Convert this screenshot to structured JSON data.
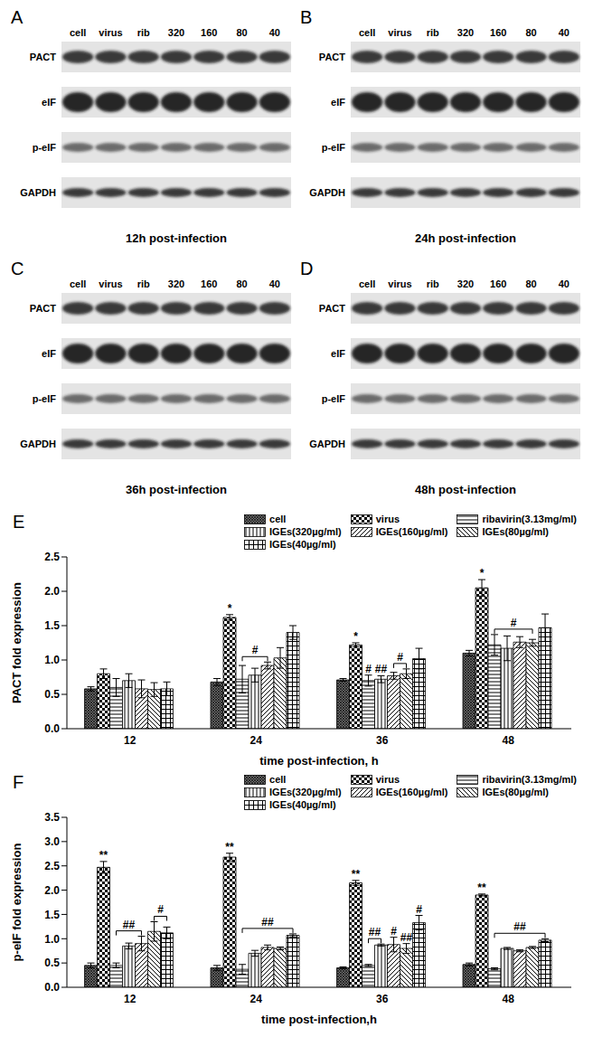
{
  "blots": {
    "lanes": [
      "cell",
      "virus",
      "rib",
      "320",
      "160",
      "80",
      "40"
    ],
    "proteins": [
      "PACT",
      "eIF",
      "p-eIF",
      "GAPDH"
    ],
    "panels": [
      {
        "letter": "A",
        "caption": "12h post-infection"
      },
      {
        "letter": "B",
        "caption": "24h post-infection"
      },
      {
        "letter": "C",
        "caption": "36h post-infection"
      },
      {
        "letter": "D",
        "caption": "48h post-infection"
      }
    ]
  },
  "chart_data": [
    {
      "type": "bar",
      "panel_label": "E",
      "x_label": "time post-infection, h",
      "y_label": "PACT fold expression",
      "grid": false,
      "legend": "top-right",
      "categories": [
        "12",
        "24",
        "36",
        "48"
      ],
      "ylim": [
        0,
        2.5
      ],
      "yticks": [
        {
          "value": 0,
          "label": "0.0"
        },
        0.5,
        {
          "value": 1,
          "label": "1.0"
        },
        1.5,
        {
          "value": 2,
          "label": "2.0"
        },
        2.5
      ],
      "series": [
        {
          "name": "cell",
          "color": "#000000",
          "values": [
            0.58,
            0.68,
            0.71,
            1.1
          ],
          "errors": [
            0.03,
            0.05,
            0.02,
            0.04
          ]
        },
        {
          "name": "virus",
          "color": "#000000",
          "values": [
            0.8,
            1.62,
            1.22,
            2.05
          ],
          "errors": [
            0.07,
            0.04,
            0.03,
            0.12
          ]
        },
        {
          "name": "ribavirin(3.13mg/ml)",
          "color": "#000000",
          "values": [
            0.6,
            0.72,
            0.7,
            1.22
          ],
          "errors": [
            0.13,
            0.2,
            0.08,
            0.15
          ]
        },
        {
          "name": "IGEs(320µg/ml)",
          "color": "#000000",
          "values": [
            0.7,
            0.78,
            0.72,
            1.17
          ],
          "errors": [
            0.1,
            0.1,
            0.05,
            0.18
          ]
        },
        {
          "name": "IGEs(160µg/ml)",
          "color": "#000000",
          "values": [
            0.58,
            0.92,
            0.77,
            1.26
          ],
          "errors": [
            0.13,
            0.05,
            0.05,
            0.08
          ]
        },
        {
          "name": "IGEs(80µg/ml)",
          "color": "#000000",
          "values": [
            0.57,
            1.03,
            0.8,
            1.25
          ],
          "errors": [
            0.1,
            0.15,
            0.07,
            0.05
          ]
        },
        {
          "name": "IGEs(40µg/ml)",
          "color": "#000000",
          "values": [
            0.58,
            1.4,
            1.02,
            1.47
          ],
          "errors": [
            0.1,
            0.1,
            0.15,
            0.2
          ]
        }
      ],
      "annotations": [
        {
          "x": "24",
          "from": "virus",
          "to": "virus",
          "text": "*"
        },
        {
          "x": "24",
          "from": "ribavirin(3.13mg/ml)",
          "to": "IGEs(160µg/ml)",
          "text": "#"
        },
        {
          "x": "36",
          "from": "virus",
          "to": "virus",
          "text": "*"
        },
        {
          "x": "36",
          "from": "ribavirin(3.13mg/ml)",
          "to": "ribavirin(3.13mg/ml)",
          "text": "#"
        },
        {
          "x": "36",
          "from": "IGEs(320µg/ml)",
          "to": "IGEs(320µg/ml)",
          "text": "##"
        },
        {
          "x": "36",
          "from": "IGEs(160µg/ml)",
          "to": "IGEs(80µg/ml)",
          "text": "#"
        },
        {
          "x": "48",
          "from": "virus",
          "to": "virus",
          "text": "*"
        },
        {
          "x": "48",
          "from": "ribavirin(3.13mg/ml)",
          "to": "IGEs(80µg/ml)",
          "text": "#"
        }
      ]
    },
    {
      "type": "bar",
      "panel_label": "F",
      "x_label": "time post-infection,h",
      "y_label": "p-eIF fold expression",
      "grid": false,
      "legend": "top-right",
      "categories": [
        "12",
        "24",
        "36",
        "48"
      ],
      "ylim": [
        0,
        3.5
      ],
      "yticks": [
        {
          "value": 0,
          "label": "0.0"
        },
        0.5,
        {
          "value": 1,
          "label": "1.0"
        },
        1.5,
        {
          "value": 2,
          "label": "2.0"
        },
        2.5,
        {
          "value": 3,
          "label": "3.0"
        },
        3.5
      ],
      "series": [
        {
          "name": "cell",
          "color": "#000000",
          "values": [
            0.45,
            0.4,
            0.4,
            0.47
          ],
          "errors": [
            0.05,
            0.05,
            0.02,
            0.03
          ]
        },
        {
          "name": "virus",
          "color": "#000000",
          "values": [
            2.47,
            2.68,
            2.15,
            1.9
          ],
          "errors": [
            0.12,
            0.08,
            0.05,
            0.02
          ]
        },
        {
          "name": "ribavirin(3.13mg/ml)",
          "color": "#000000",
          "values": [
            0.45,
            0.37,
            0.45,
            0.38
          ],
          "errors": [
            0.05,
            0.1,
            0.02,
            0.02
          ]
        },
        {
          "name": "IGEs(320µg/ml)",
          "color": "#000000",
          "values": [
            0.85,
            0.7,
            0.87,
            0.8
          ],
          "errors": [
            0.06,
            0.06,
            0.02,
            0.02
          ]
        },
        {
          "name": "IGEs(160µg/ml)",
          "color": "#000000",
          "values": [
            0.9,
            0.82,
            0.88,
            0.75
          ],
          "errors": [
            0.15,
            0.05,
            0.15,
            0.02
          ]
        },
        {
          "name": "IGEs(80µg/ml)",
          "color": "#000000",
          "values": [
            1.15,
            0.8,
            0.8,
            0.82
          ],
          "errors": [
            0.2,
            0.03,
            0.1,
            0.02
          ]
        },
        {
          "name": "IGEs(40µg/ml)",
          "color": "#000000",
          "values": [
            1.12,
            1.07,
            1.33,
            0.97
          ],
          "errors": [
            0.12,
            0.03,
            0.15,
            0.03
          ]
        }
      ],
      "annotations": [
        {
          "x": "12",
          "from": "virus",
          "to": "virus",
          "text": "**"
        },
        {
          "x": "12",
          "from": "ribavirin(3.13mg/ml)",
          "to": "IGEs(160µg/ml)",
          "text": "##"
        },
        {
          "x": "12",
          "from": "IGEs(80µg/ml)",
          "to": "IGEs(40µg/ml)",
          "text": "#"
        },
        {
          "x": "24",
          "from": "virus",
          "to": "virus",
          "text": "**"
        },
        {
          "x": "24",
          "from": "ribavirin(3.13mg/ml)",
          "to": "IGEs(40µg/ml)",
          "text": "##"
        },
        {
          "x": "36",
          "from": "virus",
          "to": "virus",
          "text": "**"
        },
        {
          "x": "36",
          "from": "ribavirin(3.13mg/ml)",
          "to": "IGEs(320µg/ml)",
          "text": "##"
        },
        {
          "x": "36",
          "from": "IGEs(160µg/ml)",
          "to": "IGEs(160µg/ml)",
          "text": "#"
        },
        {
          "x": "36",
          "from": "IGEs(80µg/ml)",
          "to": "IGEs(80µg/ml)",
          "text": "##"
        },
        {
          "x": "36",
          "from": "IGEs(40µg/ml)",
          "to": "IGEs(40µg/ml)",
          "text": "#"
        },
        {
          "x": "48",
          "from": "virus",
          "to": "virus",
          "text": "**"
        },
        {
          "x": "48",
          "from": "ribavirin(3.13mg/ml)",
          "to": "IGEs(40µg/ml)",
          "text": "##"
        }
      ]
    }
  ]
}
